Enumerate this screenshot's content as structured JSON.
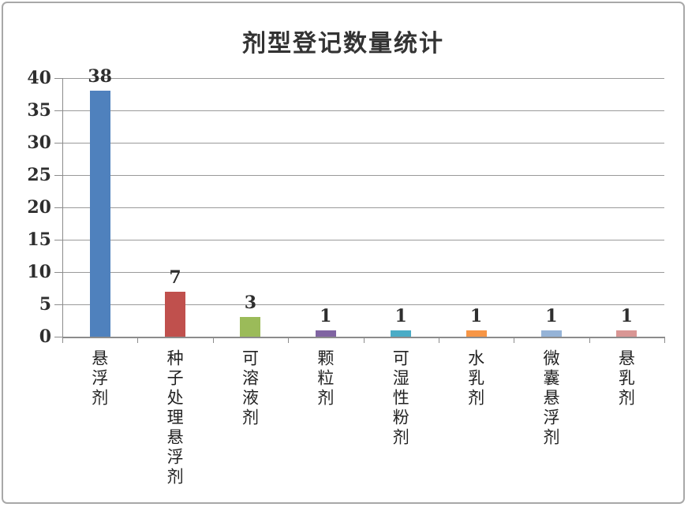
{
  "chart_data": {
    "type": "bar",
    "title": "剂型登记数量统计",
    "categories": [
      "悬浮剂",
      "种子处理悬浮剂",
      "可溶液剂",
      "颗粒剂",
      "可湿性粉剂",
      "水乳剂",
      "微囊悬浮剂",
      "悬乳剂"
    ],
    "values": [
      38,
      7,
      3,
      1,
      1,
      1,
      1,
      1
    ],
    "data_labels": [
      "38",
      "7",
      "3",
      "1",
      "1",
      "1",
      "1",
      "1"
    ],
    "bar_colors": [
      "#4F81BD",
      "#C0504D",
      "#9BBB59",
      "#8064A2",
      "#4BACC6",
      "#F79646",
      "#95B3D7",
      "#D99694"
    ],
    "yticks": [
      0,
      5,
      10,
      15,
      20,
      25,
      30,
      35,
      40
    ],
    "ylim": [
      0,
      40
    ],
    "xlabel": "",
    "ylabel": "",
    "grid": true,
    "legend_position": "none",
    "colors": {
      "gridline": "#9a9a9a",
      "axis": "#8c8c8c",
      "text": "#2e2e2e",
      "frame_border": "#a8a8a8",
      "background": "#ffffff"
    }
  }
}
